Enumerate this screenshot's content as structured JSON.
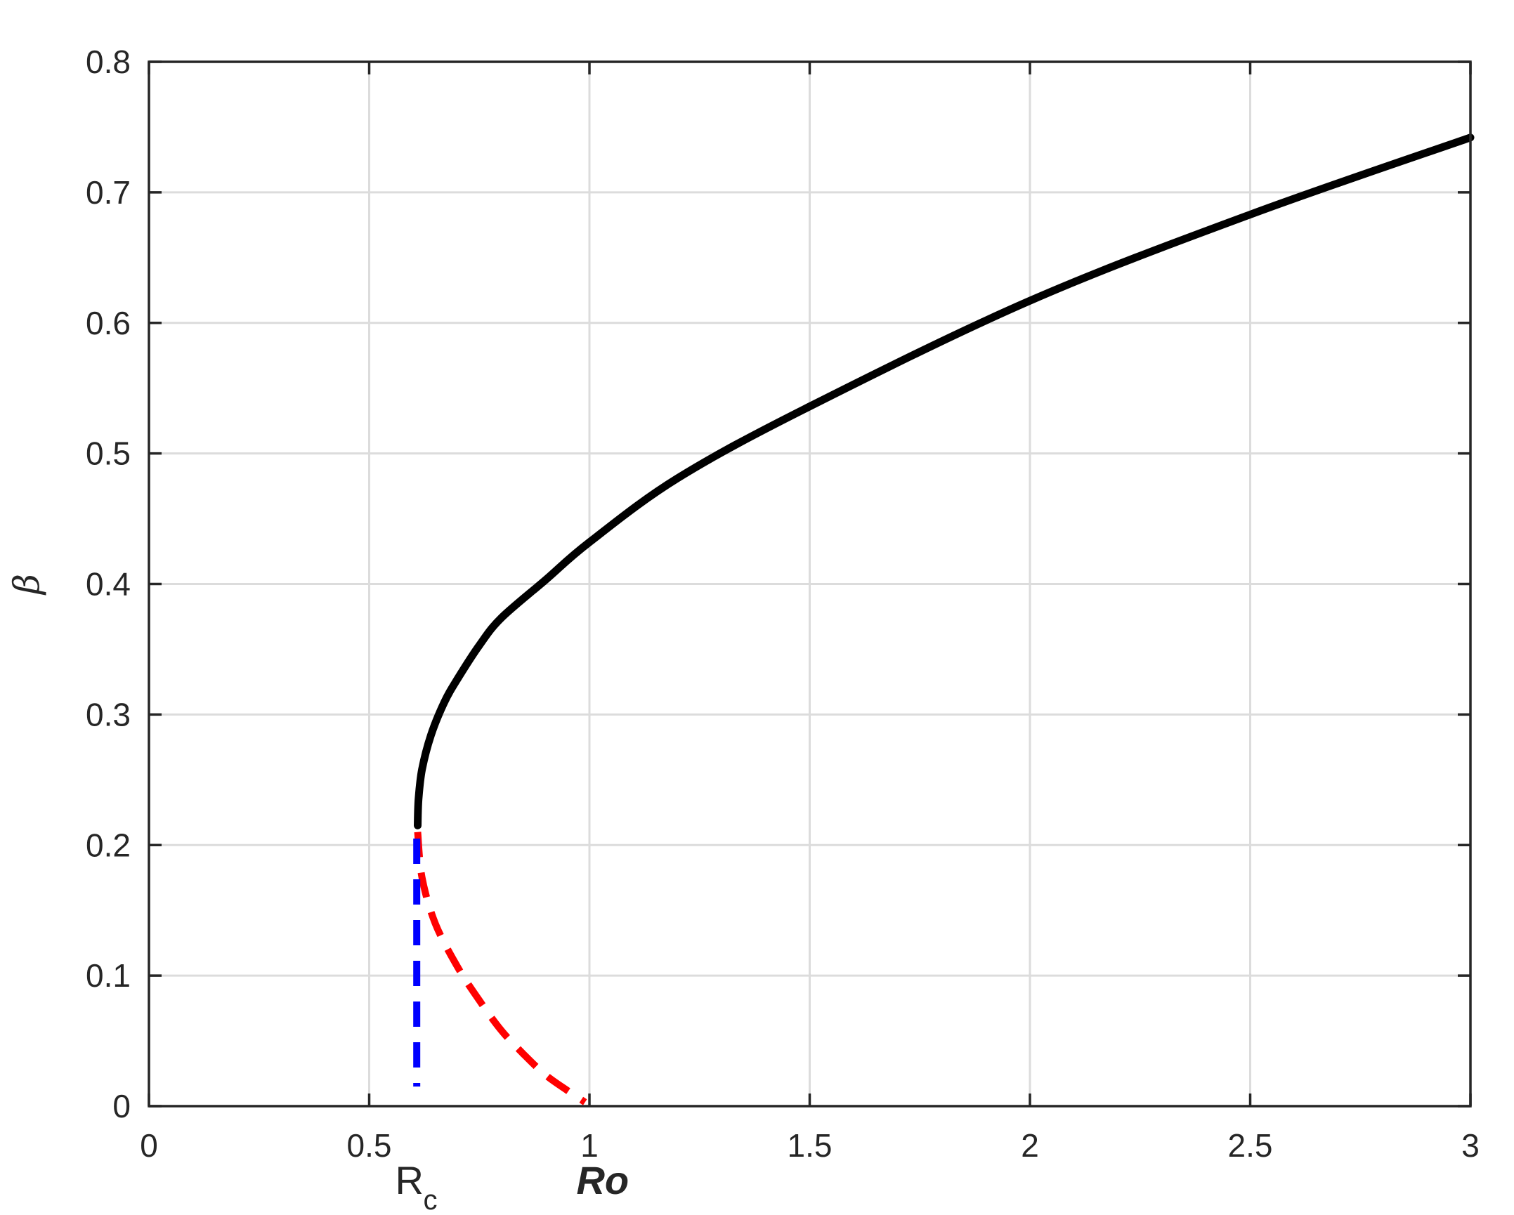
{
  "chart_data": {
    "type": "line",
    "xlabel": "Ro",
    "ylabel": "β",
    "xlim": [
      0,
      3
    ],
    "ylim": [
      0,
      0.8
    ],
    "xticks": [
      0,
      0.5,
      1,
      1.5,
      2,
      2.5,
      3
    ],
    "xtick_labels": [
      "0",
      "0.5",
      "1",
      "1.5",
      "2",
      "2.5",
      "3"
    ],
    "yticks": [
      0,
      0.1,
      0.2,
      0.3,
      0.4,
      0.5,
      0.6,
      0.7,
      0.8
    ],
    "ytick_labels": [
      "0",
      "0.1",
      "0.2",
      "0.3",
      "0.4",
      "0.5",
      "0.6",
      "0.7",
      "0.8"
    ],
    "grid": true,
    "annotations": [
      {
        "text": "R",
        "subscript": "c",
        "x": 0.61
      }
    ],
    "series": [
      {
        "style": "solid",
        "color": "#000000",
        "x": [
          0.61,
          0.612,
          0.62,
          0.64,
          0.67,
          0.7,
          0.75,
          0.8,
          0.9,
          1.0,
          1.2,
          1.5,
          2.0,
          2.5,
          3.0
        ],
        "y": [
          0.215,
          0.235,
          0.258,
          0.284,
          0.309,
          0.327,
          0.353,
          0.374,
          0.403,
          0.432,
          0.481,
          0.536,
          0.617,
          0.683,
          0.742
        ]
      },
      {
        "style": "dashed",
        "color": "#ff0000",
        "x": [
          0.61,
          0.62,
          0.65,
          0.7,
          0.75,
          0.8,
          0.85,
          0.9,
          0.95,
          0.99
        ],
        "y": [
          0.21,
          0.175,
          0.14,
          0.107,
          0.081,
          0.058,
          0.04,
          0.024,
          0.012,
          0.003
        ]
      },
      {
        "style": "dashed",
        "color": "#0000ff",
        "x": [
          0.608,
          0.608
        ],
        "y": [
          0.205,
          0.015
        ]
      }
    ]
  }
}
